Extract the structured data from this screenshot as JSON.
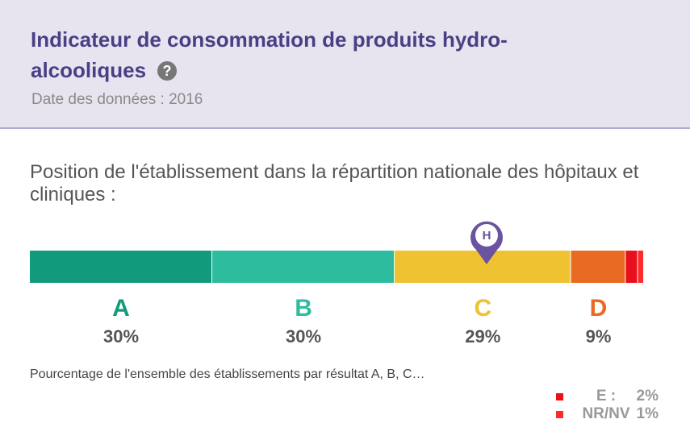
{
  "header": {
    "title": "Indicateur de consommation de produits hydro-alcooliques",
    "date": "Date des données : 2016"
  },
  "chart_data": {
    "type": "stacked_bar",
    "title": "Position de l'établissement dans la répartition nationale des hôpitaux et cliniques :",
    "caption": "Pourcentage de l'ensemble des établissements par résultat A, B, C…",
    "categories": [
      "A",
      "B",
      "C",
      "D"
    ],
    "values": [
      30,
      30,
      29,
      9
    ],
    "value_labels": [
      "30%",
      "30%",
      "29%",
      "9%"
    ],
    "colors": [
      "#129a7d",
      "#2dbc9e",
      "#eec230",
      "#e86a23"
    ],
    "others": {
      "categories": [
        "E :",
        "NR/NV"
      ],
      "values": [
        2,
        1
      ],
      "value_labels": [
        "2%",
        "1%"
      ],
      "colors": [
        "#e8101c",
        "#ff2a2a"
      ]
    }
  }
}
